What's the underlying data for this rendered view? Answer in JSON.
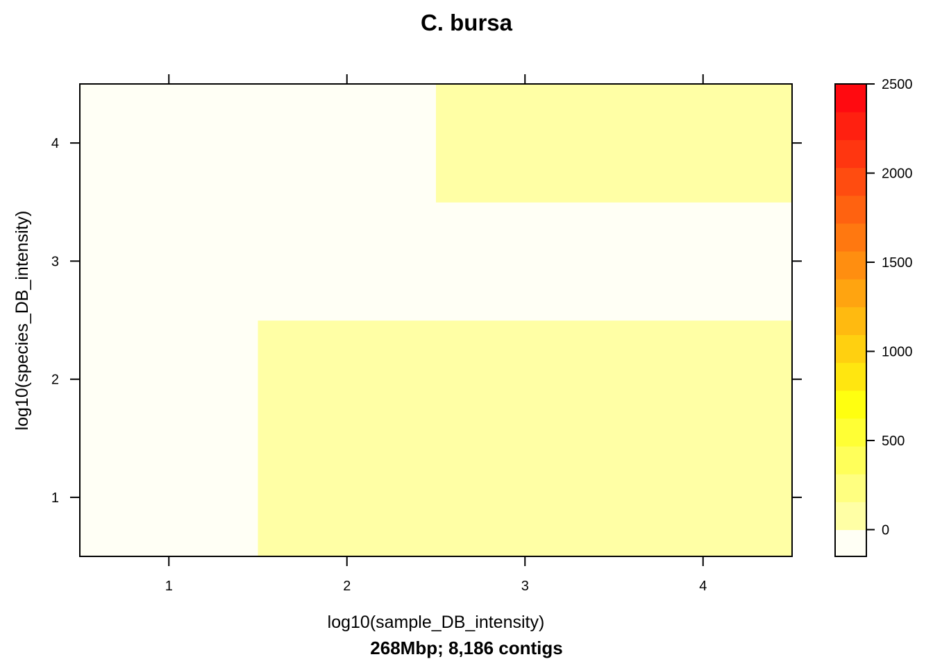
{
  "chart_data": {
    "type": "heatmap",
    "title": "C. bursa",
    "xlabel": "log10(sample_DB_intensity)",
    "ylabel": "log10(species_DB_intensity)",
    "subtitle": "268Mbp; 8,186 contigs",
    "x": [
      1,
      2,
      3,
      4
    ],
    "y": [
      1,
      2,
      3,
      4
    ],
    "xlim": [
      0.5,
      4.5
    ],
    "ylim": [
      0.5,
      4.5
    ],
    "x_ticks": [
      "1",
      "2",
      "3",
      "4"
    ],
    "y_ticks": [
      "1",
      "2",
      "3",
      "4"
    ],
    "z": [
      [
        0,
        50,
        50,
        50
      ],
      [
        0,
        50,
        50,
        50
      ],
      [
        0,
        0,
        0,
        0
      ],
      [
        0,
        0,
        50,
        50
      ]
    ],
    "colorbar": {
      "range": [
        -150,
        2500
      ],
      "ticks": [
        0,
        500,
        1000,
        1500,
        2000,
        2500
      ],
      "tick_labels": [
        "0",
        "500",
        "1000",
        "1500",
        "2000",
        "2500"
      ],
      "colors": [
        "#FFFFF5",
        "#FFFFA5",
        "#FFFF80",
        "#FFFF5A",
        "#FFFF35",
        "#FFFF10",
        "#FFE610",
        "#FFD010",
        "#FFBA10",
        "#FFA410",
        "#FF8E10",
        "#FF7810",
        "#FF6210",
        "#FF4C10",
        "#FF3610",
        "#FF2010",
        "#FF0A10"
      ]
    },
    "cell_colors": {
      "0": "#FFFFF5",
      "50": "#FFFFA5"
    }
  }
}
